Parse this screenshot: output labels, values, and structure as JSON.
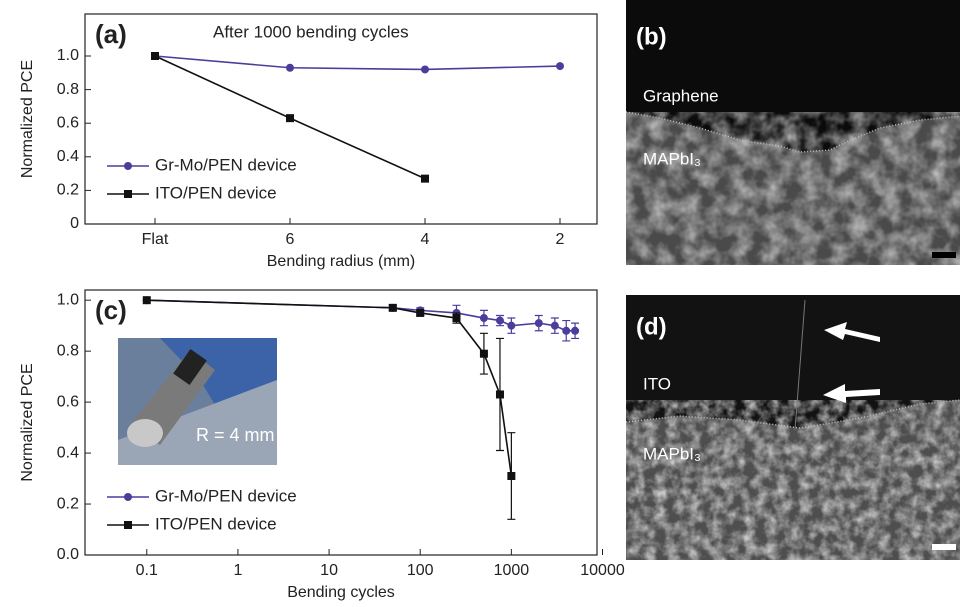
{
  "chart_data": [
    {
      "type": "line",
      "panel_label": "(a)",
      "annotation": "After 1000 bending cycles",
      "xlabel": "Bending radius (mm)",
      "ylabel": "Normalized PCE",
      "categories": [
        "Flat",
        "6",
        "4",
        "2"
      ],
      "series": [
        {
          "name": "Gr-Mo/PEN device",
          "color": "#4a3d9c",
          "marker": "circle",
          "values": [
            1.0,
            0.93,
            0.92,
            0.94
          ]
        },
        {
          "name": "ITO/PEN device",
          "color": "#111111",
          "marker": "square",
          "values": [
            1.0,
            0.63,
            0.27,
            null
          ]
        }
      ],
      "ylim": [
        0,
        1.25
      ],
      "yticks": [
        0,
        0.2,
        0.4,
        0.6,
        0.8,
        {
          "value": 1,
          "label": "1.0"
        }
      ],
      "legend": "lower left"
    },
    {
      "type": "line",
      "panel_label": "(c)",
      "inset_text": "R = 4 mm",
      "xlabel": "Bending cycles",
      "ylabel": "Normalized PCE",
      "x": [
        0.1,
        50,
        100,
        250,
        500,
        750,
        1000,
        2000,
        3000,
        4000,
        5000
      ],
      "series": [
        {
          "name": "Gr-Mo/PEN device",
          "color": "#4a3d9c",
          "marker": "circle",
          "values": [
            1.0,
            0.97,
            0.96,
            0.95,
            0.93,
            0.92,
            0.9,
            0.91,
            0.9,
            0.88,
            0.88
          ],
          "errors": [
            0,
            0.01,
            0.01,
            0.03,
            0.03,
            0.02,
            0.03,
            0.03,
            0.03,
            0.04,
            0.03
          ]
        },
        {
          "name": "ITO/PEN device",
          "color": "#111111",
          "marker": "square",
          "values": [
            1.0,
            0.97,
            0.95,
            0.93,
            0.79,
            0.63,
            0.31,
            null,
            null,
            null,
            null
          ],
          "errors": [
            0,
            0.01,
            0.01,
            0.02,
            0.08,
            0.22,
            0.17,
            null,
            null,
            null,
            null
          ]
        }
      ],
      "xscale": "log",
      "xlim": [
        0.021,
        8700
      ],
      "xticks": [
        0.1,
        1,
        10,
        100,
        1000,
        10000
      ],
      "ylim": [
        0,
        1.04
      ],
      "yticks": [
        {
          "value": 0,
          "label": "0.0"
        },
        0.2,
        0.4,
        0.6,
        0.8,
        {
          "value": 1,
          "label": "1.0"
        }
      ],
      "legend": "lower left"
    }
  ],
  "image_panels": [
    {
      "label": "(b)",
      "texts": [
        "Graphene",
        "MAPbI₃"
      ]
    },
    {
      "label": "(d)",
      "texts": [
        "ITO",
        "MAPbI₃"
      ]
    }
  ]
}
